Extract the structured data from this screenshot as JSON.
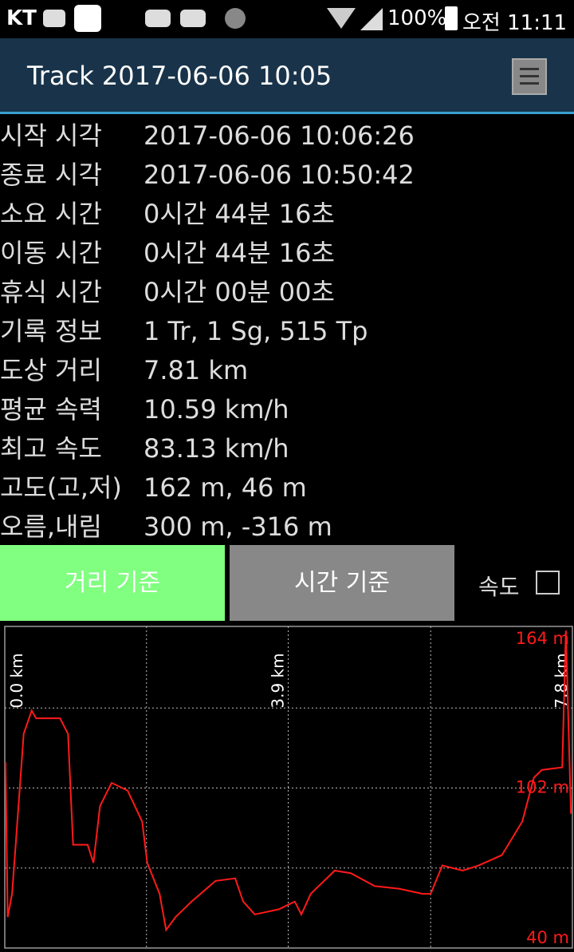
{
  "status_bar": {
    "carrier": "KT",
    "battery": "100%",
    "clock": "오전 11:11"
  },
  "header": {
    "title": "Track 2017-06-06 10:05"
  },
  "stats": [
    {
      "label": "시작 시각",
      "value": "2017-06-06 10:06:26"
    },
    {
      "label": "종료 시각",
      "value": "2017-06-06 10:50:42"
    },
    {
      "label": "소요 시간",
      "value": "0시간 44분 16초"
    },
    {
      "label": "이동 시간",
      "value": "0시간 44분 16초"
    },
    {
      "label": "휴식 시간",
      "value": "0시간 00분 00초"
    },
    {
      "label": "기록 정보",
      "value": "1 Tr, 1 Sg, 515 Tp"
    },
    {
      "label": "도상 거리",
      "value": "7.81 km"
    },
    {
      "label": "평균 속력",
      "value": "10.59 km/h"
    },
    {
      "label": "최고 속도",
      "value": "83.13 km/h"
    },
    {
      "label": "고도(고,저)",
      "value": "162 m, 46 m"
    },
    {
      "label": "오름,내림",
      "value": "300 m, -316 m"
    }
  ],
  "buttons": {
    "distance": "거리 기준",
    "time": "시간 기준",
    "speed": "속도"
  },
  "chart_data": {
    "type": "line",
    "color": "#ff1a1a",
    "x": [
      0.01,
      0.04,
      0.1,
      0.15,
      0.26,
      0.37,
      0.43,
      0.76,
      0.87,
      0.94,
      1.14,
      1.22,
      1.31,
      1.47,
      1.69,
      1.89,
      1.96,
      2.13,
      2.22,
      2.35,
      2.57,
      2.9,
      3.17,
      3.28,
      3.44,
      3.77,
      3.99,
      4.08,
      4.21,
      4.54,
      4.76,
      5.09,
      5.42,
      5.75,
      5.86,
      6.02,
      6.3,
      6.52,
      6.84,
      7.12,
      7.28,
      7.39,
      7.67,
      7.72,
      7.79
    ],
    "values": [
      112,
      52,
      61,
      80,
      123,
      132,
      129,
      129,
      123,
      80,
      80,
      73,
      95,
      104,
      101,
      89,
      73,
      61,
      47,
      52,
      58,
      66,
      67,
      58,
      53,
      55,
      58,
      53,
      61,
      70,
      69,
      64,
      63,
      61,
      61,
      72,
      70,
      72,
      76,
      89,
      106,
      109,
      110,
      163,
      92
    ],
    "xlim": [
      0,
      7.81
    ],
    "xticks": [
      {
        "value": 0,
        "label": "0.0 km"
      },
      {
        "value": 3.9,
        "label": "3.9 km"
      },
      {
        "value": 7.8,
        "label": "7.8 km"
      }
    ],
    "xgrid": [
      1.95,
      3.9,
      5.86
    ],
    "ylim": [
      40,
      164
    ],
    "yticks": [
      {
        "value": 164,
        "label": "164 m"
      },
      {
        "value": 102,
        "label": "102 m"
      },
      {
        "value": 40,
        "label": "40 m"
      }
    ],
    "ygrid": [
      71,
      102,
      133
    ]
  }
}
